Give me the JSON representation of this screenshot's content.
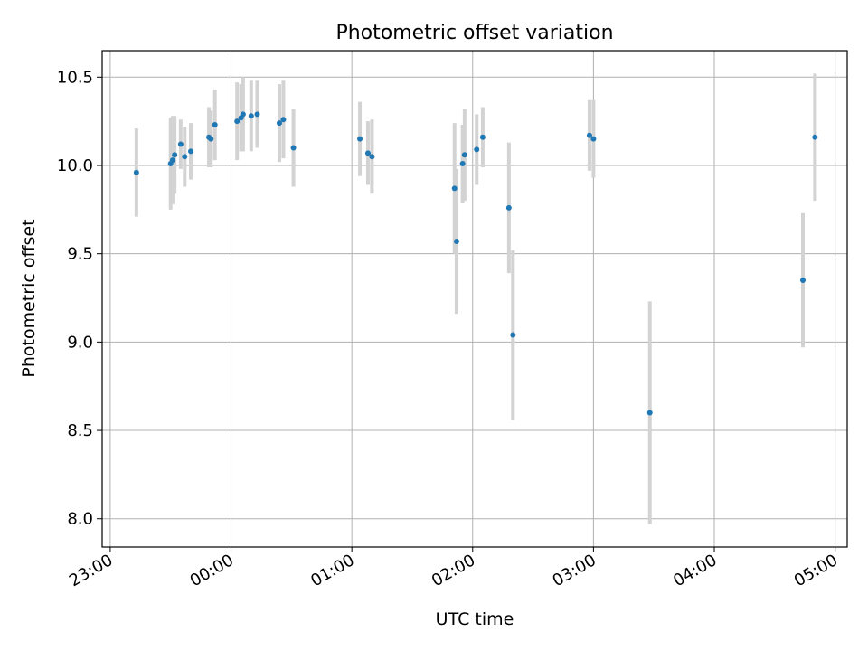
{
  "chart_data": {
    "type": "scatter",
    "title": "Photometric offset variation",
    "xlabel": "UTC time",
    "ylabel": "Photometric offset",
    "x_ticks": [
      "23:00",
      "00:00",
      "01:00",
      "02:00",
      "03:00",
      "04:00",
      "05:00"
    ],
    "y_ticks": [
      "8.0",
      "8.5",
      "9.0",
      "9.5",
      "10.0",
      "10.5"
    ],
    "xlim": [
      "22:56",
      "05:06"
    ],
    "ylim": [
      7.84,
      10.65
    ],
    "grid": true,
    "marker_color": "#1f77b4",
    "errorbar_color": "#d3d3d3",
    "points": [
      {
        "t": "23:13",
        "y": 9.96,
        "err": 0.25
      },
      {
        "t": "23:30",
        "y": 10.01,
        "err": 0.26
      },
      {
        "t": "23:31",
        "y": 10.03,
        "err": 0.25
      },
      {
        "t": "23:32",
        "y": 10.06,
        "err": 0.22
      },
      {
        "t": "23:35",
        "y": 10.12,
        "err": 0.14
      },
      {
        "t": "23:37",
        "y": 10.05,
        "err": 0.17
      },
      {
        "t": "23:40",
        "y": 10.08,
        "err": 0.16
      },
      {
        "t": "23:49",
        "y": 10.16,
        "err": 0.17
      },
      {
        "t": "23:50",
        "y": 10.15,
        "err": 0.16
      },
      {
        "t": "23:52",
        "y": 10.23,
        "err": 0.2
      },
      {
        "t": "00:03",
        "y": 10.25,
        "err": 0.22
      },
      {
        "t": "00:05",
        "y": 10.27,
        "err": 0.19
      },
      {
        "t": "00:06",
        "y": 10.29,
        "err": 0.21
      },
      {
        "t": "00:10",
        "y": 10.28,
        "err": 0.2
      },
      {
        "t": "00:13",
        "y": 10.29,
        "err": 0.19
      },
      {
        "t": "00:24",
        "y": 10.24,
        "err": 0.22
      },
      {
        "t": "00:26",
        "y": 10.26,
        "err": 0.22
      },
      {
        "t": "00:31",
        "y": 10.1,
        "err": 0.22
      },
      {
        "t": "01:04",
        "y": 10.15,
        "err": 0.21
      },
      {
        "t": "01:08",
        "y": 10.07,
        "err": 0.18
      },
      {
        "t": "01:10",
        "y": 10.05,
        "err": 0.21
      },
      {
        "t": "01:51",
        "y": 9.87,
        "err": 0.37
      },
      {
        "t": "01:52",
        "y": 9.57,
        "err": 0.41
      },
      {
        "t": "01:55",
        "y": 10.01,
        "err": 0.22
      },
      {
        "t": "01:56",
        "y": 10.06,
        "err": 0.26
      },
      {
        "t": "02:02",
        "y": 10.09,
        "err": 0.2
      },
      {
        "t": "02:05",
        "y": 10.16,
        "err": 0.17
      },
      {
        "t": "02:18",
        "y": 9.76,
        "err": 0.37
      },
      {
        "t": "02:20",
        "y": 9.04,
        "err": 0.48
      },
      {
        "t": "02:58",
        "y": 10.17,
        "err": 0.2
      },
      {
        "t": "03:00",
        "y": 10.15,
        "err": 0.22
      },
      {
        "t": "03:28",
        "y": 8.6,
        "err": 0.63
      },
      {
        "t": "04:44",
        "y": 9.35,
        "err": 0.38
      },
      {
        "t": "04:50",
        "y": 10.16,
        "err": 0.36
      }
    ]
  }
}
